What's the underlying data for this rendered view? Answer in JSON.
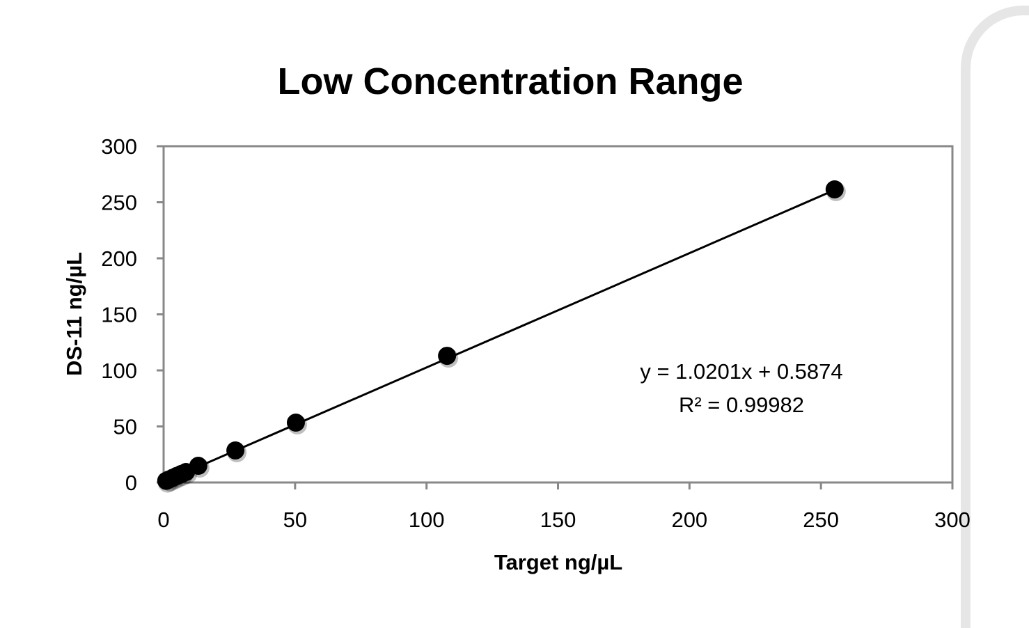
{
  "chart_data": {
    "type": "scatter",
    "title": "Low Concentration Range",
    "xlabel": "Target ng/µL",
    "ylabel": "DS-11 ng/µL",
    "xlim": [
      0,
      300
    ],
    "ylim": [
      0,
      300
    ],
    "xticks": [
      0,
      50,
      100,
      150,
      200,
      250,
      300
    ],
    "yticks": [
      0,
      50,
      100,
      150,
      200,
      250,
      300
    ],
    "grid": false,
    "marker_color": "#000000",
    "points": [
      {
        "x": 1,
        "y": 1.5
      },
      {
        "x": 2,
        "y": 2.6
      },
      {
        "x": 3.5,
        "y": 4.2
      },
      {
        "x": 5,
        "y": 5.8
      },
      {
        "x": 6.7,
        "y": 7.5
      },
      {
        "x": 8.5,
        "y": 9.3
      },
      {
        "x": 13.2,
        "y": 14.9
      },
      {
        "x": 27.3,
        "y": 28.6
      },
      {
        "x": 50.3,
        "y": 53.4
      },
      {
        "x": 107.8,
        "y": 113
      },
      {
        "x": 255.2,
        "y": 261.5
      }
    ],
    "trendline": {
      "slope": 1.0201,
      "intercept": 0.5874,
      "r2": 0.99982
    },
    "annotations": [
      "y = 1.0201x + 0.5874",
      "R² = 0.99982"
    ]
  }
}
